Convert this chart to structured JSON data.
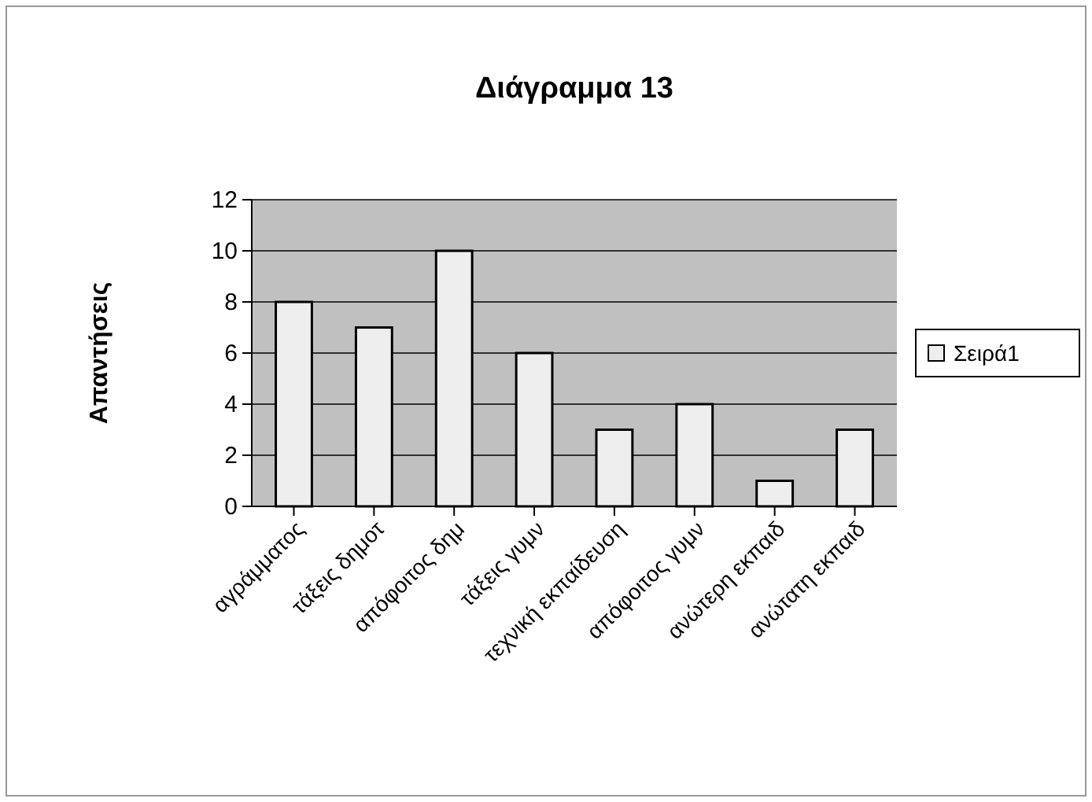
{
  "chart_data": {
    "type": "bar",
    "title": "Διάγραμμα 13",
    "ylabel": "Απαντήσεις",
    "categories": [
      "αγράμματος",
      "τάξεις δημοτ",
      "απόφοιτος δημ",
      "τάξεις γυμν",
      "τεχνική εκπαίδευση",
      "απόφοιτος γυμν",
      "ανώτερη εκπαιδ",
      "ανώτατη εκπαιδ"
    ],
    "series": [
      {
        "name": "Σειρά1",
        "color": "#eeeeee",
        "values": [
          8,
          7,
          10,
          6,
          3,
          4,
          1,
          3
        ]
      }
    ],
    "ylim": [
      0,
      12
    ],
    "yticks": [
      0,
      2,
      4,
      6,
      8,
      10,
      12
    ],
    "grid": "y",
    "legend": "right"
  }
}
